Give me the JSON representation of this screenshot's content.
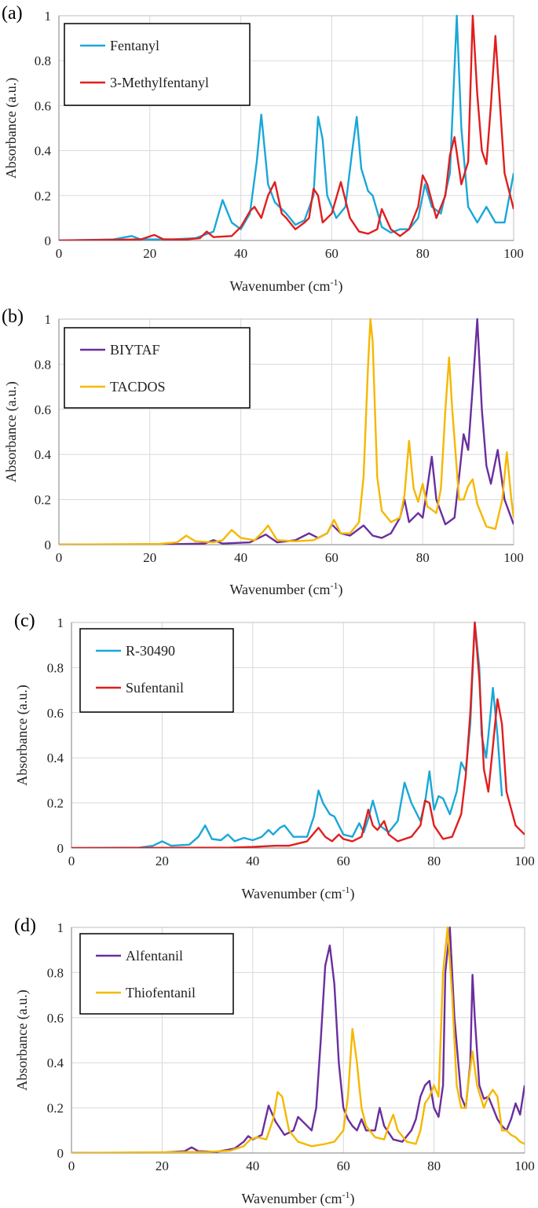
{
  "chart_data": [
    {
      "type": "line",
      "panel_label": "(a)",
      "xlabel": "Wavenumber (cm",
      "xlabel_sup": "-1",
      "xlabel_end": ")",
      "ylabel": "Absorbance (a.u.)",
      "xlim": [
        0,
        100
      ],
      "ylim": [
        0,
        1
      ],
      "xticks": [
        "0",
        "20",
        "40",
        "60",
        "80",
        "100"
      ],
      "yticks": [
        "0",
        "0.2",
        "0.4",
        "0.6",
        "0.8",
        "1"
      ],
      "grid": true,
      "legend_position": "top-left",
      "series": [
        {
          "name": "Fentanyl",
          "color": "#1aa7d8",
          "x": [
            0,
            12,
            16,
            18,
            25,
            30,
            34,
            36,
            38,
            40,
            42,
            43.5,
            44.5,
            46,
            47.5,
            50,
            52,
            54,
            56,
            57,
            58,
            59,
            61,
            63,
            64.5,
            65.5,
            66.5,
            68,
            69,
            71,
            73,
            75,
            77,
            79,
            80.5,
            82,
            84,
            86,
            87.5,
            88.5,
            90,
            92,
            94,
            96,
            98,
            100
          ],
          "y": [
            0,
            0.005,
            0.02,
            0.005,
            0.005,
            0.01,
            0.04,
            0.18,
            0.08,
            0.05,
            0.12,
            0.35,
            0.56,
            0.25,
            0.17,
            0.12,
            0.07,
            0.09,
            0.2,
            0.55,
            0.45,
            0.2,
            0.1,
            0.15,
            0.4,
            0.55,
            0.32,
            0.22,
            0.2,
            0.06,
            0.035,
            0.05,
            0.05,
            0.1,
            0.25,
            0.15,
            0.12,
            0.3,
            1.0,
            0.5,
            0.15,
            0.08,
            0.15,
            0.08,
            0.08,
            0.3
          ]
        },
        {
          "name": "3-Methylfentanyl",
          "color": "#e01e1e",
          "x": [
            0,
            18,
            21,
            23,
            28,
            31,
            32.5,
            34,
            38,
            40,
            42,
            43,
            44.5,
            46,
            47.5,
            49,
            50,
            52,
            54,
            55,
            56,
            57,
            58,
            60,
            62,
            64,
            66,
            68,
            70,
            71,
            73,
            75,
            77,
            79,
            80,
            81,
            83,
            85,
            86,
            87,
            88.5,
            90,
            91,
            92,
            93,
            94,
            95,
            96,
            98,
            100
          ],
          "y": [
            0,
            0.005,
            0.025,
            0.005,
            0.005,
            0.01,
            0.04,
            0.015,
            0.02,
            0.06,
            0.13,
            0.15,
            0.1,
            0.2,
            0.26,
            0.12,
            0.1,
            0.05,
            0.08,
            0.1,
            0.23,
            0.2,
            0.08,
            0.12,
            0.26,
            0.1,
            0.04,
            0.03,
            0.05,
            0.14,
            0.05,
            0.02,
            0.05,
            0.15,
            0.29,
            0.25,
            0.1,
            0.2,
            0.38,
            0.46,
            0.25,
            0.35,
            1.0,
            0.65,
            0.4,
            0.34,
            0.6,
            0.91,
            0.3,
            0.14
          ]
        }
      ]
    },
    {
      "type": "line",
      "panel_label": "(b)",
      "xlabel": "Wavenumber (cm",
      "xlabel_sup": "-1",
      "xlabel_end": ")",
      "ylabel": "Absorbance (a.u.)",
      "xlim": [
        0,
        100
      ],
      "ylim": [
        0,
        1
      ],
      "xticks": [
        "0",
        "20",
        "40",
        "60",
        "80",
        "100"
      ],
      "yticks": [
        "0",
        "0.2",
        "0.4",
        "0.6",
        "0.8",
        "1"
      ],
      "grid": true,
      "legend_position": "top-left",
      "series": [
        {
          "name": "BIYTAF",
          "color": "#6a2e9e",
          "x": [
            0,
            25,
            32,
            34,
            36,
            42,
            45.5,
            48,
            52,
            55,
            57,
            59,
            60,
            62,
            64,
            67,
            69,
            71,
            73,
            75,
            76,
            77,
            79,
            80,
            81,
            82,
            83,
            85,
            87,
            88,
            89,
            90,
            91,
            92,
            93,
            94,
            95,
            96.5,
            98,
            100
          ],
          "y": [
            0,
            0.002,
            0.005,
            0.02,
            0.005,
            0.01,
            0.045,
            0.01,
            0.02,
            0.05,
            0.03,
            0.05,
            0.09,
            0.05,
            0.04,
            0.085,
            0.04,
            0.03,
            0.05,
            0.12,
            0.2,
            0.1,
            0.14,
            0.12,
            0.25,
            0.39,
            0.2,
            0.09,
            0.12,
            0.3,
            0.49,
            0.42,
            0.7,
            1.0,
            0.6,
            0.35,
            0.27,
            0.42,
            0.2,
            0.09
          ]
        },
        {
          "name": "TACDOS",
          "color": "#f5b800",
          "x": [
            0,
            22,
            26,
            28,
            30,
            34,
            36,
            38,
            40,
            43,
            45,
            46,
            48,
            52,
            56,
            59,
            60.5,
            62,
            64,
            66,
            67,
            68,
            68.5,
            69,
            70,
            71,
            73,
            75,
            76,
            77,
            78,
            79,
            80,
            81,
            83,
            84,
            85,
            85.8,
            86.5,
            88,
            89,
            90,
            91,
            92,
            94,
            96,
            97.5,
            98.5,
            99.5,
            100
          ],
          "y": [
            0,
            0.003,
            0.01,
            0.04,
            0.015,
            0.01,
            0.02,
            0.065,
            0.03,
            0.02,
            0.06,
            0.085,
            0.02,
            0.015,
            0.02,
            0.05,
            0.11,
            0.05,
            0.05,
            0.1,
            0.3,
            0.8,
            1.0,
            0.9,
            0.3,
            0.15,
            0.1,
            0.12,
            0.22,
            0.46,
            0.25,
            0.19,
            0.27,
            0.17,
            0.14,
            0.25,
            0.6,
            0.83,
            0.6,
            0.2,
            0.2,
            0.26,
            0.29,
            0.18,
            0.08,
            0.07,
            0.2,
            0.41,
            0.2,
            0.12
          ]
        }
      ]
    },
    {
      "type": "line",
      "panel_label": "(c)",
      "xlabel": "Wavenumber (cm",
      "xlabel_sup": "-1",
      "xlabel_end": ")",
      "ylabel": "Absorbance (a.u.)",
      "xlim": [
        0,
        100
      ],
      "ylim": [
        0,
        1
      ],
      "xticks": [
        "0",
        "20",
        "40",
        "60",
        "80",
        "100"
      ],
      "yticks": [
        "0",
        "0.2",
        "0.4",
        "0.6",
        "0.8",
        "1"
      ],
      "grid": true,
      "legend_position": "top-left",
      "series": [
        {
          "name": "R-30490",
          "color": "#1aa7d8",
          "x": [
            0,
            15,
            18,
            20,
            22,
            26,
            28,
            29.5,
            31,
            33,
            34.5,
            36,
            38,
            40,
            42,
            43.5,
            44.5,
            46,
            47,
            49,
            52,
            53.5,
            54.5,
            55.5,
            57,
            58,
            60,
            62,
            63.5,
            64.5,
            65.5,
            66.5,
            68,
            70,
            72,
            73.5,
            75,
            77,
            78,
            79,
            80,
            81,
            82,
            83.5,
            85,
            86,
            87,
            88,
            89,
            90,
            90.5,
            91.5,
            92.5,
            93,
            94,
            95
          ],
          "y": [
            0,
            0.002,
            0.01,
            0.03,
            0.01,
            0.015,
            0.05,
            0.1,
            0.04,
            0.035,
            0.06,
            0.03,
            0.045,
            0.035,
            0.05,
            0.08,
            0.06,
            0.09,
            0.1,
            0.05,
            0.05,
            0.14,
            0.255,
            0.2,
            0.15,
            0.14,
            0.06,
            0.05,
            0.11,
            0.07,
            0.13,
            0.21,
            0.1,
            0.07,
            0.12,
            0.29,
            0.2,
            0.12,
            0.2,
            0.34,
            0.17,
            0.23,
            0.22,
            0.15,
            0.25,
            0.38,
            0.34,
            0.55,
            1.0,
            0.8,
            0.5,
            0.4,
            0.6,
            0.71,
            0.5,
            0.23
          ]
        },
        {
          "name": "Sufentanil",
          "color": "#e01e1e",
          "x": [
            0,
            35,
            40,
            45,
            48,
            52,
            54.5,
            56,
            57.5,
            59,
            60,
            62,
            64,
            65.5,
            66.5,
            67.5,
            69,
            70,
            72,
            75,
            77,
            78,
            79,
            80,
            82,
            84,
            86,
            87,
            88,
            89,
            90,
            91,
            92,
            93,
            94,
            95,
            96,
            98,
            100
          ],
          "y": [
            0,
            0.002,
            0.005,
            0.01,
            0.01,
            0.03,
            0.09,
            0.05,
            0.03,
            0.06,
            0.04,
            0.03,
            0.05,
            0.17,
            0.1,
            0.08,
            0.12,
            0.06,
            0.03,
            0.05,
            0.1,
            0.21,
            0.2,
            0.1,
            0.04,
            0.05,
            0.15,
            0.32,
            0.6,
            1.0,
            0.75,
            0.35,
            0.25,
            0.45,
            0.66,
            0.55,
            0.25,
            0.1,
            0.06
          ]
        }
      ]
    },
    {
      "type": "line",
      "panel_label": "(d)",
      "xlabel": "Wavenumber (cm",
      "xlabel_sup": "-1",
      "xlabel_end": ")",
      "ylabel": "Absorbance (a.u.)",
      "xlim": [
        0,
        100
      ],
      "ylim": [
        0,
        1
      ],
      "xticks": [
        "0",
        "20",
        "40",
        "60",
        "80",
        "100"
      ],
      "yticks": [
        "0",
        "0.2",
        "0.4",
        "0.6",
        "0.8",
        "1"
      ],
      "grid": true,
      "legend_position": "top-left",
      "series": [
        {
          "name": "Alfentanil",
          "color": "#6a2e9e",
          "x": [
            0,
            20,
            25,
            26.5,
            28,
            32,
            36,
            38,
            39,
            40,
            42,
            43.5,
            45,
            47,
            49,
            50,
            51,
            53,
            54,
            55,
            56,
            57,
            58,
            59,
            60,
            61,
            62,
            63,
            64,
            65,
            67,
            68,
            69,
            71,
            73,
            75,
            76,
            77,
            78,
            79,
            80,
            81,
            82,
            82.5,
            83.5,
            84.5,
            86,
            87,
            88,
            88.5,
            89,
            90,
            91,
            92,
            93,
            94,
            95,
            96,
            97,
            98,
            99,
            100
          ],
          "y": [
            0,
            0.002,
            0.008,
            0.025,
            0.008,
            0.005,
            0.02,
            0.05,
            0.075,
            0.06,
            0.08,
            0.21,
            0.14,
            0.08,
            0.1,
            0.16,
            0.14,
            0.1,
            0.2,
            0.5,
            0.83,
            0.92,
            0.75,
            0.4,
            0.2,
            0.15,
            0.12,
            0.1,
            0.15,
            0.1,
            0.1,
            0.2,
            0.12,
            0.06,
            0.05,
            0.1,
            0.15,
            0.25,
            0.3,
            0.32,
            0.2,
            0.16,
            0.3,
            0.8,
            1.0,
            0.6,
            0.25,
            0.2,
            0.4,
            0.79,
            0.6,
            0.3,
            0.24,
            0.25,
            0.2,
            0.15,
            0.12,
            0.1,
            0.15,
            0.22,
            0.17,
            0.3
          ]
        },
        {
          "name": "Thiofentanil",
          "color": "#f5b800",
          "x": [
            0,
            30,
            35,
            38,
            39.5,
            41,
            43,
            44.5,
            45.5,
            46.5,
            48,
            50,
            53,
            56,
            58,
            60,
            61,
            62,
            63,
            64,
            65,
            67,
            69,
            70,
            71,
            72,
            74,
            76,
            77,
            78,
            79,
            80,
            81,
            82,
            83,
            84,
            85,
            86,
            87,
            87.5,
            88.5,
            89.5,
            91,
            92,
            93,
            94,
            95,
            96,
            97,
            98,
            99,
            100
          ],
          "y": [
            0,
            0.005,
            0.01,
            0.03,
            0.06,
            0.07,
            0.06,
            0.15,
            0.27,
            0.25,
            0.1,
            0.05,
            0.03,
            0.04,
            0.05,
            0.1,
            0.25,
            0.55,
            0.4,
            0.2,
            0.12,
            0.07,
            0.06,
            0.12,
            0.17,
            0.1,
            0.05,
            0.04,
            0.1,
            0.22,
            0.25,
            0.3,
            0.25,
            0.8,
            1.0,
            0.7,
            0.3,
            0.2,
            0.2,
            0.3,
            0.45,
            0.3,
            0.2,
            0.25,
            0.28,
            0.25,
            0.1,
            0.1,
            0.08,
            0.07,
            0.05,
            0.04
          ]
        }
      ]
    }
  ]
}
